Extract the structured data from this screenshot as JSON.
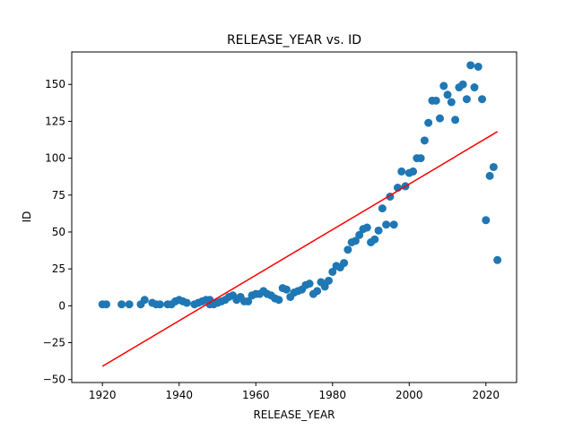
{
  "chart_data": {
    "type": "scatter",
    "title": "RELEASE_YEAR vs. ID",
    "xlabel": "RELEASE_YEAR",
    "ylabel": "ID",
    "xlim": [
      1912,
      2028
    ],
    "ylim": [
      -52,
      172
    ],
    "xticks": [
      1920,
      1940,
      1960,
      1980,
      2000,
      2020
    ],
    "yticks": [
      -50,
      -25,
      0,
      25,
      50,
      75,
      100,
      125,
      150
    ],
    "grid": false,
    "point_color": "#1f77b4",
    "trend_color": "#ff0000",
    "points": [
      [
        1920,
        1
      ],
      [
        1921,
        1
      ],
      [
        1925,
        1
      ],
      [
        1927,
        1
      ],
      [
        1930,
        1
      ],
      [
        1931,
        4
      ],
      [
        1933,
        2
      ],
      [
        1934,
        1
      ],
      [
        1935,
        1
      ],
      [
        1937,
        1
      ],
      [
        1938,
        1
      ],
      [
        1939,
        3
      ],
      [
        1940,
        4
      ],
      [
        1941,
        3
      ],
      [
        1942,
        2
      ],
      [
        1944,
        1
      ],
      [
        1945,
        2
      ],
      [
        1946,
        3
      ],
      [
        1947,
        4
      ],
      [
        1948,
        1
      ],
      [
        1948,
        4
      ],
      [
        1949,
        1
      ],
      [
        1950,
        2
      ],
      [
        1951,
        3
      ],
      [
        1952,
        4
      ],
      [
        1953,
        6
      ],
      [
        1954,
        7
      ],
      [
        1955,
        4
      ],
      [
        1956,
        6
      ],
      [
        1957,
        3
      ],
      [
        1958,
        3
      ],
      [
        1959,
        7
      ],
      [
        1960,
        8
      ],
      [
        1961,
        8
      ],
      [
        1962,
        10
      ],
      [
        1963,
        8
      ],
      [
        1964,
        7
      ],
      [
        1965,
        5
      ],
      [
        1966,
        4
      ],
      [
        1967,
        12
      ],
      [
        1968,
        11
      ],
      [
        1969,
        6
      ],
      [
        1970,
        9
      ],
      [
        1971,
        10
      ],
      [
        1972,
        11
      ],
      [
        1973,
        14
      ],
      [
        1974,
        15
      ],
      [
        1975,
        8
      ],
      [
        1976,
        10
      ],
      [
        1977,
        16
      ],
      [
        1978,
        13
      ],
      [
        1979,
        17
      ],
      [
        1980,
        23
      ],
      [
        1981,
        27
      ],
      [
        1982,
        26
      ],
      [
        1983,
        29
      ],
      [
        1984,
        38
      ],
      [
        1985,
        43
      ],
      [
        1986,
        44
      ],
      [
        1987,
        48
      ],
      [
        1988,
        52
      ],
      [
        1989,
        53
      ],
      [
        1990,
        43
      ],
      [
        1991,
        45
      ],
      [
        1992,
        51
      ],
      [
        1993,
        66
      ],
      [
        1994,
        55
      ],
      [
        1995,
        74
      ],
      [
        1996,
        55
      ],
      [
        1997,
        80
      ],
      [
        1998,
        91
      ],
      [
        1999,
        81
      ],
      [
        2000,
        90
      ],
      [
        2001,
        91
      ],
      [
        2002,
        100
      ],
      [
        2003,
        100
      ],
      [
        2004,
        112
      ],
      [
        2005,
        124
      ],
      [
        2006,
        139
      ],
      [
        2007,
        139
      ],
      [
        2008,
        127
      ],
      [
        2009,
        149
      ],
      [
        2010,
        143
      ],
      [
        2011,
        138
      ],
      [
        2012,
        126
      ],
      [
        2013,
        148
      ],
      [
        2014,
        150
      ],
      [
        2015,
        140
      ],
      [
        2016,
        163
      ],
      [
        2017,
        148
      ],
      [
        2018,
        162
      ],
      [
        2019,
        140
      ],
      [
        2020,
        58
      ],
      [
        2021,
        88
      ],
      [
        2022,
        94
      ],
      [
        2023,
        31
      ]
    ],
    "trend_line": [
      [
        1920,
        -41
      ],
      [
        2023,
        118
      ]
    ]
  }
}
